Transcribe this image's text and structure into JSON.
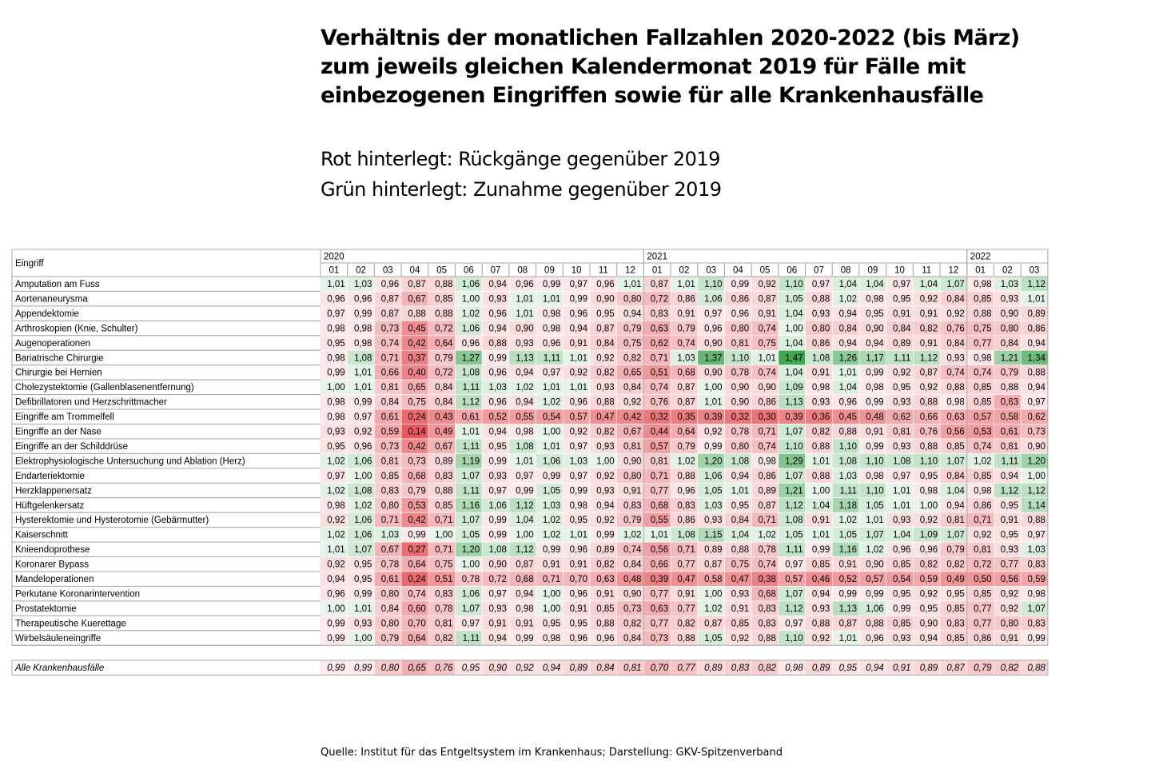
{
  "title_lines": [
    "Verhältnis der monatlichen Fallzahlen 2020-2022 (bis März)",
    "zum jeweils gleichen Kalendermonat 2019 für Fälle mit",
    "einbezogenen Eingriffen sowie für alle Krankenhausfälle"
  ],
  "legend_lines": [
    "Rot hinterlegt: Rückgänge gegenüber 2019",
    "Grün hinterlegt: Zunahme gegenüber 2019"
  ],
  "source": "Quelle: Institut für das Entgeltsystem im Krankenhaus; Darstellung: GKV-Spitzenverband",
  "colors": {
    "decrease": "#e8585e",
    "increase": "#3fa652",
    "neutral": "#ffffff",
    "grid": "#a8a8a8"
  },
  "chart_data": {
    "type": "heatmap",
    "row_header": "Eingriff",
    "years": [
      {
        "label": "2020",
        "months": [
          "01",
          "02",
          "03",
          "04",
          "05",
          "06",
          "07",
          "08",
          "09",
          "10",
          "11",
          "12"
        ]
      },
      {
        "label": "2021",
        "months": [
          "01",
          "02",
          "03",
          "04",
          "05",
          "06",
          "07",
          "08",
          "09",
          "10",
          "11",
          "12"
        ]
      },
      {
        "label": "2022",
        "months": [
          "01",
          "02",
          "03"
        ]
      }
    ],
    "rows": [
      {
        "label": "Amputation am Fuss",
        "values": [
          "1,01",
          "1,03",
          "0,96",
          "0,87",
          "0,88",
          "1,06",
          "0,94",
          "0,96",
          "0,99",
          "0,97",
          "0,96",
          "1,01",
          "0,87",
          "1,01",
          "1,10",
          "0,99",
          "0,92",
          "1,10",
          "0,97",
          "1,04",
          "1,04",
          "0,97",
          "1,04",
          "1,07",
          "0,98",
          "1,03",
          "1,12"
        ]
      },
      {
        "label": "Aortenaneurysma",
        "values": [
          "0,96",
          "0,96",
          "0,87",
          "0,67",
          "0,85",
          "1,00",
          "0,93",
          "1,01",
          "1,01",
          "0,99",
          "0,90",
          "0,80",
          "0,72",
          "0,86",
          "1,06",
          "0,86",
          "0,87",
          "1,05",
          "0,88",
          "1,02",
          "0,98",
          "0,95",
          "0,92",
          "0,84",
          "0,85",
          "0,93",
          "1,01"
        ]
      },
      {
        "label": "Appendektomie",
        "values": [
          "0,97",
          "0,99",
          "0,87",
          "0,88",
          "0,88",
          "1,02",
          "0,96",
          "1,01",
          "0,98",
          "0,96",
          "0,95",
          "0,94",
          "0,83",
          "0,91",
          "0,97",
          "0,96",
          "0,91",
          "1,04",
          "0,93",
          "0,94",
          "0,95",
          "0,91",
          "0,91",
          "0,92",
          "0,88",
          "0,90",
          "0,89"
        ]
      },
      {
        "label": "Arthroskopien (Knie, Schulter)",
        "values": [
          "0,98",
          "0,98",
          "0,73",
          "0,45",
          "0,72",
          "1,06",
          "0,94",
          "0,90",
          "0,98",
          "0,94",
          "0,87",
          "0,79",
          "0,63",
          "0,79",
          "0,96",
          "0,80",
          "0,74",
          "1,00",
          "0,80",
          "0,84",
          "0,90",
          "0,84",
          "0,82",
          "0,76",
          "0,75",
          "0,80",
          "0,86"
        ]
      },
      {
        "label": "Augenoperationen",
        "values": [
          "0,95",
          "0,98",
          "0,74",
          "0,42",
          "0,64",
          "0,96",
          "0,88",
          "0,93",
          "0,96",
          "0,91",
          "0,84",
          "0,75",
          "0,62",
          "0,74",
          "0,90",
          "0,81",
          "0,75",
          "1,04",
          "0,86",
          "0,94",
          "0,94",
          "0,89",
          "0,91",
          "0,84",
          "0,77",
          "0,84",
          "0,94"
        ]
      },
      {
        "label": "Bariatrische Chirurgie",
        "values": [
          "0,98",
          "1,08",
          "0,71",
          "0,37",
          "0,79",
          "1,27",
          "0,99",
          "1,13",
          "1,11",
          "1,01",
          "0,92",
          "0,82",
          "0,71",
          "1,03",
          "1,37",
          "1,10",
          "1,01",
          "1,47",
          "1,08",
          "1,26",
          "1,17",
          "1,11",
          "1,12",
          "0,93",
          "0,98",
          "1,21",
          "1,34"
        ]
      },
      {
        "label": "Chirurgie bei Hernien",
        "values": [
          "0,99",
          "1,01",
          "0,66",
          "0,40",
          "0,72",
          "1,08",
          "0,96",
          "0,94",
          "0,97",
          "0,92",
          "0,82",
          "0,65",
          "0,51",
          "0,68",
          "0,90",
          "0,78",
          "0,74",
          "1,04",
          "0,91",
          "1,01",
          "0,99",
          "0,92",
          "0,87",
          "0,74",
          "0,74",
          "0,79",
          "0,88"
        ]
      },
      {
        "label": "Cholezystektomie (Gallenblasenentfernung)",
        "values": [
          "1,00",
          "1,01",
          "0,81",
          "0,65",
          "0,84",
          "1,11",
          "1,03",
          "1,02",
          "1,01",
          "1,01",
          "0,93",
          "0,84",
          "0,74",
          "0,87",
          "1,00",
          "0,90",
          "0,90",
          "1,09",
          "0,98",
          "1,04",
          "0,98",
          "0,95",
          "0,92",
          "0,88",
          "0,85",
          "0,88",
          "0,94"
        ]
      },
      {
        "label": "Defibrillatoren und Herzschrittmacher",
        "values": [
          "0,98",
          "0,99",
          "0,84",
          "0,75",
          "0,84",
          "1,12",
          "0,96",
          "0,94",
          "1,02",
          "0,96",
          "0,88",
          "0,92",
          "0,76",
          "0,87",
          "1,01",
          "0,90",
          "0,86",
          "1,13",
          "0,93",
          "0,96",
          "0,99",
          "0,93",
          "0,88",
          "0,98",
          "0,85",
          "0,63",
          "0,97"
        ]
      },
      {
        "label": "Eingriffe am Trommelfell",
        "values": [
          "0,98",
          "0,97",
          "0,61",
          "0,24",
          "0,43",
          "0,61",
          "0,52",
          "0,55",
          "0,54",
          "0,57",
          "0,47",
          "0,42",
          "0,32",
          "0,35",
          "0,39",
          "0,32",
          "0,30",
          "0,39",
          "0,36",
          "0,45",
          "0,48",
          "0,62",
          "0,66",
          "0,63",
          "0,57",
          "0,58",
          "0,62"
        ]
      },
      {
        "label": "Eingriffe an der Nase",
        "values": [
          "0,93",
          "0,92",
          "0,59",
          "0,14",
          "0,49",
          "1,01",
          "0,94",
          "0,98",
          "1,00",
          "0,92",
          "0,82",
          "0,67",
          "0,44",
          "0,64",
          "0,92",
          "0,78",
          "0,71",
          "1,07",
          "0,82",
          "0,88",
          "0,91",
          "0,81",
          "0,76",
          "0,56",
          "0,53",
          "0,61",
          "0,73"
        ]
      },
      {
        "label": "Eingriffe an der Schilddrüse",
        "values": [
          "0,95",
          "0,96",
          "0,73",
          "0,42",
          "0,67",
          "1,11",
          "0,95",
          "1,08",
          "1,01",
          "0,97",
          "0,93",
          "0,81",
          "0,57",
          "0,79",
          "0,99",
          "0,80",
          "0,74",
          "1,10",
          "0,88",
          "1,10",
          "0,99",
          "0,93",
          "0,88",
          "0,85",
          "0,74",
          "0,81",
          "0,90"
        ]
      },
      {
        "label": "Elektrophysiologische Untersuchung und Ablation (Herz)",
        "values": [
          "1,02",
          "1,06",
          "0,81",
          "0,73",
          "0,89",
          "1,19",
          "0,99",
          "1,01",
          "1,06",
          "1,03",
          "1,00",
          "0,90",
          "0,81",
          "1,02",
          "1,20",
          "1,08",
          "0,98",
          "1,29",
          "1,01",
          "1,08",
          "1,10",
          "1,08",
          "1,10",
          "1,07",
          "1,02",
          "1,11",
          "1,20"
        ]
      },
      {
        "label": "Endarteriektomie",
        "values": [
          "0,97",
          "1,00",
          "0,85",
          "0,68",
          "0,83",
          "1,07",
          "0,93",
          "0,97",
          "0,99",
          "0,97",
          "0,92",
          "0,80",
          "0,71",
          "0,88",
          "1,06",
          "0,94",
          "0,86",
          "1,07",
          "0,88",
          "1,03",
          "0,98",
          "0,97",
          "0,95",
          "0,84",
          "0,85",
          "0,94",
          "1,00"
        ]
      },
      {
        "label": "Herzklappenersatz",
        "values": [
          "1,02",
          "1,08",
          "0,83",
          "0,79",
          "0,88",
          "1,11",
          "0,97",
          "0,99",
          "1,05",
          "0,99",
          "0,93",
          "0,91",
          "0,77",
          "0,96",
          "1,05",
          "1,01",
          "0,89",
          "1,21",
          "1,00",
          "1,11",
          "1,10",
          "1,01",
          "0,98",
          "1,04",
          "0,98",
          "1,12",
          "1,12"
        ]
      },
      {
        "label": "Hüftgelenkersatz",
        "values": [
          "0,98",
          "1,02",
          "0,80",
          "0,53",
          "0,85",
          "1,16",
          "1,06",
          "1,12",
          "1,03",
          "0,98",
          "0,94",
          "0,83",
          "0,68",
          "0,83",
          "1,03",
          "0,95",
          "0,87",
          "1,12",
          "1,04",
          "1,18",
          "1,05",
          "1,01",
          "1,00",
          "0,94",
          "0,86",
          "0,95",
          "1,14"
        ]
      },
      {
        "label": "Hysterektomie und Hysterotomie (Gebärmutter)",
        "values": [
          "0,92",
          "1,06",
          "0,71",
          "0,42",
          "0,71",
          "1,07",
          "0,99",
          "1,04",
          "1,02",
          "0,95",
          "0,92",
          "0,79",
          "0,55",
          "0,86",
          "0,93",
          "0,84",
          "0,71",
          "1,08",
          "0,91",
          "1,02",
          "1,01",
          "0,93",
          "0,92",
          "0,81",
          "0,71",
          "0,91",
          "0,88"
        ]
      },
      {
        "label": "Kaiserschnitt",
        "values": [
          "1,02",
          "1,06",
          "1,03",
          "0,99",
          "1,00",
          "1,05",
          "0,99",
          "1,00",
          "1,02",
          "1,01",
          "0,99",
          "1,02",
          "1,01",
          "1,08",
          "1,15",
          "1,04",
          "1,02",
          "1,05",
          "1,01",
          "1,05",
          "1,07",
          "1,04",
          "1,09",
          "1,07",
          "0,92",
          "0,95",
          "0,97"
        ]
      },
      {
        "label": "Knieendoprothese",
        "values": [
          "1,01",
          "1,07",
          "0,67",
          "0,27",
          "0,71",
          "1,20",
          "1,08",
          "1,12",
          "0,99",
          "0,96",
          "0,89",
          "0,74",
          "0,56",
          "0,71",
          "0,89",
          "0,88",
          "0,78",
          "1,11",
          "0,99",
          "1,16",
          "1,02",
          "0,96",
          "0,96",
          "0,79",
          "0,81",
          "0,93",
          "1,03"
        ]
      },
      {
        "label": "Koronarer Bypass",
        "values": [
          "0,92",
          "0,95",
          "0,78",
          "0,64",
          "0,75",
          "1,00",
          "0,90",
          "0,87",
          "0,91",
          "0,91",
          "0,82",
          "0,84",
          "0,66",
          "0,77",
          "0,87",
          "0,75",
          "0,74",
          "0,97",
          "0,85",
          "0,91",
          "0,90",
          "0,85",
          "0,82",
          "0,82",
          "0,72",
          "0,77",
          "0,83"
        ]
      },
      {
        "label": "Mandeloperationen",
        "values": [
          "0,94",
          "0,95",
          "0,61",
          "0,24",
          "0,51",
          "0,78",
          "0,72",
          "0,68",
          "0,71",
          "0,70",
          "0,63",
          "0,48",
          "0,39",
          "0,47",
          "0,58",
          "0,47",
          "0,38",
          "0,57",
          "0,46",
          "0,52",
          "0,57",
          "0,54",
          "0,59",
          "0,49",
          "0,50",
          "0,56",
          "0,59"
        ]
      },
      {
        "label": "Perkutane Koronarintervention",
        "values": [
          "0,96",
          "0,99",
          "0,80",
          "0,74",
          "0,83",
          "1,06",
          "0,97",
          "0,94",
          "1,00",
          "0,96",
          "0,91",
          "0,90",
          "0,77",
          "0,91",
          "1,00",
          "0,93",
          "0,68",
          "1,07",
          "0,94",
          "0,99",
          "0,99",
          "0,95",
          "0,92",
          "0,95",
          "0,85",
          "0,92",
          "0,98"
        ]
      },
      {
        "label": "Prostatektomie",
        "values": [
          "1,00",
          "1,01",
          "0,84",
          "0,60",
          "0,78",
          "1,07",
          "0,93",
          "0,98",
          "1,00",
          "0,91",
          "0,85",
          "0,73",
          "0,63",
          "0,77",
          "1,02",
          "0,91",
          "0,83",
          "1,12",
          "0,93",
          "1,13",
          "1,06",
          "0,99",
          "0,95",
          "0,85",
          "0,77",
          "0,92",
          "1,07"
        ]
      },
      {
        "label": "Therapeutische Kuerettage",
        "values": [
          "0,99",
          "0,93",
          "0,80",
          "0,70",
          "0,81",
          "0,97",
          "0,91",
          "0,91",
          "0,95",
          "0,95",
          "0,88",
          "0,82",
          "0,77",
          "0,82",
          "0,87",
          "0,85",
          "0,83",
          "0,97",
          "0,88",
          "0,87",
          "0,88",
          "0,85",
          "0,90",
          "0,83",
          "0,77",
          "0,80",
          "0,83"
        ]
      },
      {
        "label": "Wirbelsäuleneingriffe",
        "values": [
          "0,99",
          "1,00",
          "0,79",
          "0,64",
          "0,82",
          "1,11",
          "0,94",
          "0,99",
          "0,98",
          "0,96",
          "0,96",
          "0,84",
          "0,73",
          "0,88",
          "1,05",
          "0,92",
          "0,88",
          "1,10",
          "0,92",
          "1,01",
          "0,96",
          "0,93",
          "0,94",
          "0,85",
          "0,86",
          "0,91",
          "0,99"
        ]
      }
    ],
    "total_row": {
      "label": "Alle Krankenhausfälle",
      "values": [
        "0,99",
        "0,99",
        "0,80",
        "0,65",
        "0,76",
        "0,95",
        "0,90",
        "0,92",
        "0,94",
        "0,89",
        "0,84",
        "0,81",
        "0,70",
        "0,77",
        "0,89",
        "0,83",
        "0,82",
        "0,98",
        "0,89",
        "0,95",
        "0,94",
        "0,91",
        "0,89",
        "0,87",
        "0,79",
        "0,82",
        "0,88"
      ]
    }
  }
}
